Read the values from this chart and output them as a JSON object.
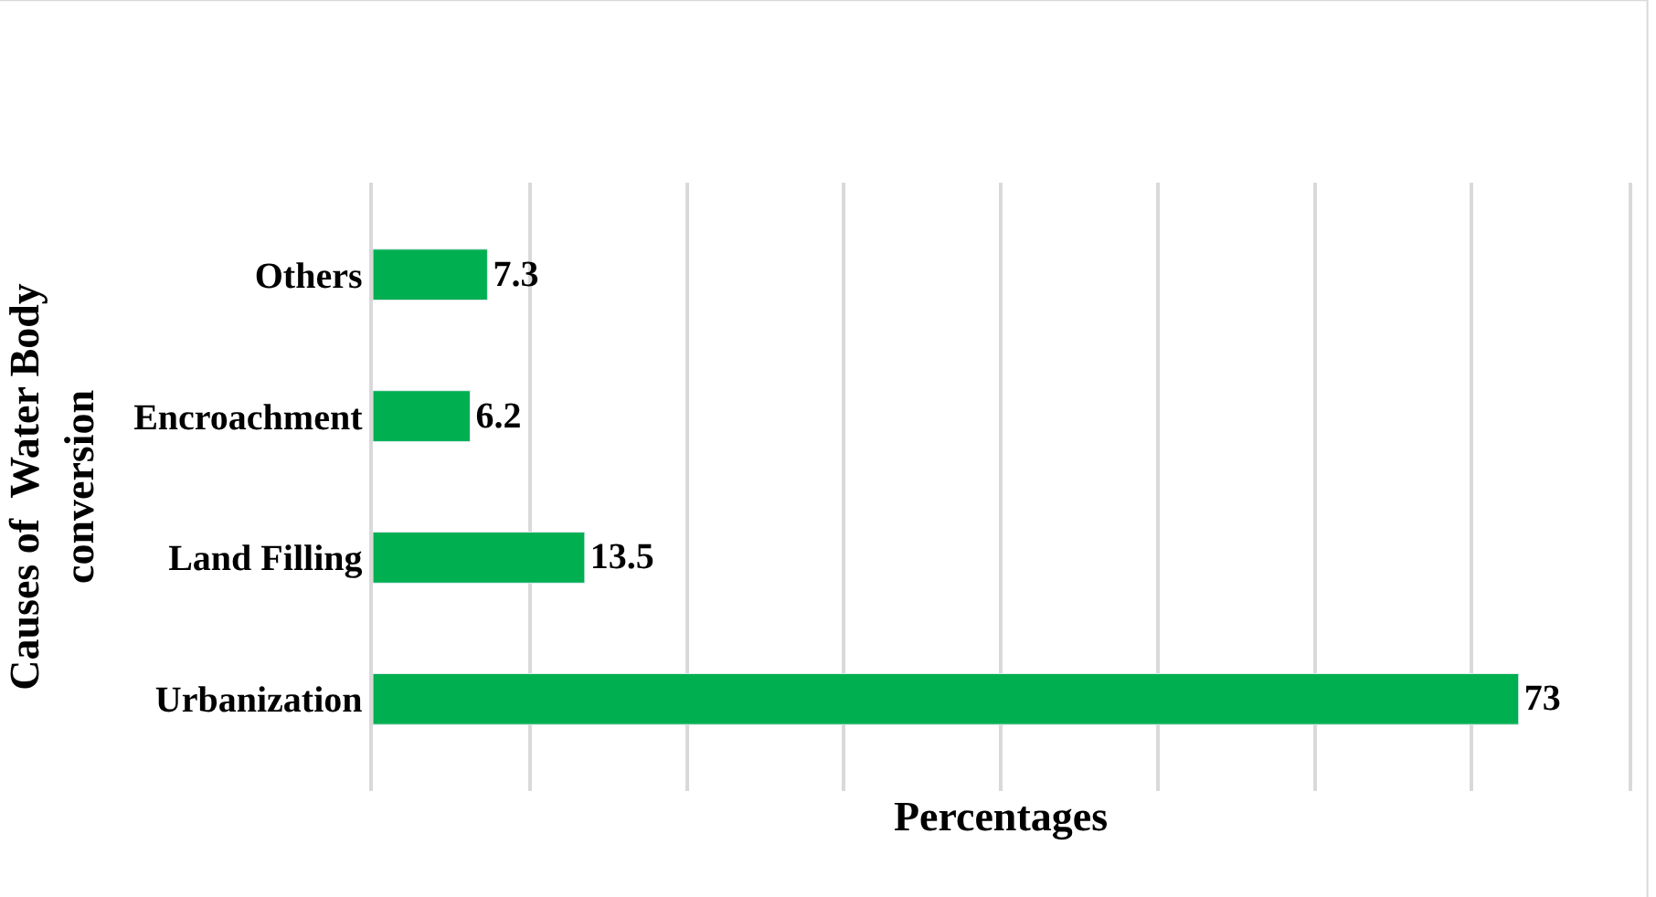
{
  "chart_data": {
    "type": "bar",
    "orientation": "horizontal",
    "ylabel": "Causes of  Water Body conversion",
    "xlabel": "Percentages",
    "categories": [
      "Others",
      "Encroachment",
      "Land Filling",
      "Urbanization"
    ],
    "series": [
      {
        "color": "#00b050",
        "values": [
          7.3,
          6.2,
          13.5,
          73
        ]
      }
    ],
    "data_labels": true,
    "xlim": [
      0,
      80
    ],
    "xticks": [
      {
        "value": 0,
        "label": null
      },
      {
        "value": 10,
        "label": null
      },
      {
        "value": 20,
        "label": null
      },
      {
        "value": 30,
        "label": null
      },
      {
        "value": 40,
        "label": null
      },
      {
        "value": 50,
        "label": null
      },
      {
        "value": 60,
        "label": null
      },
      {
        "value": 70,
        "label": null
      },
      {
        "value": 80,
        "label": null
      }
    ],
    "grid": "x",
    "tick_labels": "y"
  }
}
